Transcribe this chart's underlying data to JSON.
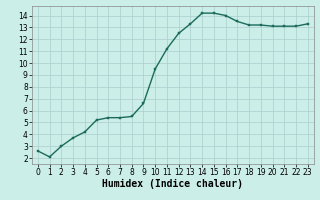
{
  "x": [
    0,
    1,
    2,
    3,
    4,
    5,
    6,
    7,
    8,
    9,
    10,
    11,
    12,
    13,
    14,
    15,
    16,
    17,
    18,
    19,
    20,
    21,
    22,
    23
  ],
  "y": [
    2.6,
    2.1,
    3.0,
    3.7,
    4.2,
    5.2,
    5.4,
    5.4,
    5.5,
    6.6,
    9.5,
    11.2,
    12.5,
    13.3,
    14.2,
    14.2,
    14.0,
    13.5,
    13.2,
    13.2,
    13.1,
    13.1,
    13.1,
    13.3
  ],
  "line_color": "#1a6b5a",
  "marker_color": "#1a6b5a",
  "bg_color": "#cceee8",
  "grid_color": "#aacccc",
  "xlabel": "Humidex (Indice chaleur)",
  "xlim": [
    -0.5,
    23.5
  ],
  "ylim": [
    1.5,
    14.8
  ],
  "yticks": [
    2,
    3,
    4,
    5,
    6,
    7,
    8,
    9,
    10,
    11,
    12,
    13,
    14
  ],
  "xticks": [
    0,
    1,
    2,
    3,
    4,
    5,
    6,
    7,
    8,
    9,
    10,
    11,
    12,
    13,
    14,
    15,
    16,
    17,
    18,
    19,
    20,
    21,
    22,
    23
  ],
  "tick_fontsize": 5.5,
  "xlabel_fontsize": 7,
  "linewidth": 1.0,
  "markersize": 2.0
}
